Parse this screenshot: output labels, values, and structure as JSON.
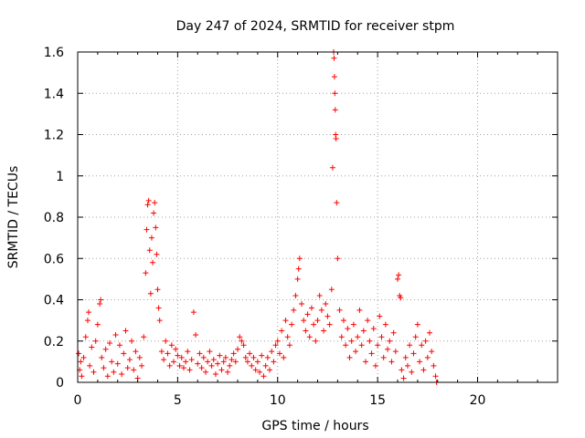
{
  "chart_data": {
    "type": "scatter",
    "title": "Day 247 of 2024, SRMTID for receiver stpm",
    "xlabel": "GPS time / hours",
    "ylabel": "SRMTID / TECUs",
    "xlim": [
      0,
      24
    ],
    "ylim": [
      0,
      1.6
    ],
    "xticks": [
      0,
      5,
      10,
      15,
      20
    ],
    "xtick_labels": [
      "0",
      "5",
      "10",
      "15",
      "20"
    ],
    "yticks": [
      0,
      0.2,
      0.4,
      0.6,
      0.8,
      1,
      1.2,
      1.4,
      1.6
    ],
    "ytick_labels": [
      "0",
      "0.2",
      "0.4",
      "0.6",
      "0.8",
      "1",
      "1.2",
      "1.4",
      "1.6"
    ],
    "grid": true,
    "marker": "+",
    "color": "#ff0000",
    "series": [
      {
        "name": "SRMTID",
        "x": [
          0.05,
          0.1,
          0.15,
          0.2,
          0.3,
          0.4,
          0.5,
          0.55,
          0.6,
          0.7,
          0.8,
          0.9,
          1.0,
          1.1,
          1.15,
          1.2,
          1.3,
          1.4,
          1.5,
          1.6,
          1.7,
          1.8,
          1.9,
          2.0,
          2.1,
          2.2,
          2.3,
          2.4,
          2.5,
          2.6,
          2.7,
          2.8,
          2.9,
          3.0,
          3.1,
          3.2,
          3.3,
          3.4,
          3.45,
          3.5,
          3.55,
          3.6,
          3.65,
          3.7,
          3.75,
          3.8,
          3.85,
          3.9,
          3.95,
          4.0,
          4.05,
          4.1,
          4.2,
          4.3,
          4.4,
          4.5,
          4.6,
          4.7,
          4.8,
          4.9,
          5.0,
          5.1,
          5.2,
          5.3,
          5.4,
          5.5,
          5.6,
          5.7,
          5.8,
          5.9,
          6.0,
          6.1,
          6.2,
          6.3,
          6.4,
          6.5,
          6.6,
          6.7,
          6.8,
          6.9,
          7.0,
          7.1,
          7.2,
          7.3,
          7.4,
          7.5,
          7.6,
          7.7,
          7.8,
          7.9,
          8.0,
          8.1,
          8.2,
          8.3,
          8.4,
          8.5,
          8.6,
          8.7,
          8.8,
          8.9,
          9.0,
          9.1,
          9.2,
          9.3,
          9.4,
          9.5,
          9.6,
          9.7,
          9.8,
          9.9,
          10.0,
          10.1,
          10.2,
          10.3,
          10.4,
          10.5,
          10.6,
          10.7,
          10.8,
          10.9,
          11.0,
          11.05,
          11.1,
          11.2,
          11.3,
          11.4,
          11.5,
          11.6,
          11.7,
          11.8,
          11.9,
          12.0,
          12.1,
          12.2,
          12.3,
          12.4,
          12.5,
          12.6,
          12.7,
          12.75,
          12.8,
          12.82,
          12.84,
          12.86,
          12.88,
          12.9,
          12.92,
          12.95,
          13.0,
          13.1,
          13.2,
          13.3,
          13.4,
          13.5,
          13.6,
          13.7,
          13.8,
          13.9,
          14.0,
          14.1,
          14.2,
          14.3,
          14.4,
          14.5,
          14.6,
          14.7,
          14.8,
          14.9,
          15.0,
          15.1,
          15.2,
          15.3,
          15.4,
          15.5,
          15.6,
          15.7,
          15.8,
          15.9,
          16.0,
          16.05,
          16.1,
          16.15,
          16.2,
          16.3,
          16.4,
          16.5,
          16.6,
          16.7,
          16.8,
          16.9,
          17.0,
          17.1,
          17.2,
          17.3,
          17.4,
          17.5,
          17.6,
          17.7,
          17.8,
          17.9,
          17.95
        ],
        "y": [
          0.14,
          0.06,
          0.1,
          0.03,
          0.12,
          0.22,
          0.3,
          0.34,
          0.08,
          0.17,
          0.05,
          0.2,
          0.28,
          0.38,
          0.4,
          0.12,
          0.07,
          0.16,
          0.03,
          0.19,
          0.1,
          0.05,
          0.23,
          0.09,
          0.18,
          0.04,
          0.14,
          0.25,
          0.07,
          0.11,
          0.2,
          0.06,
          0.15,
          0.02,
          0.12,
          0.08,
          0.22,
          0.53,
          0.74,
          0.86,
          0.88,
          0.64,
          0.43,
          0.7,
          0.58,
          0.82,
          0.87,
          0.75,
          0.62,
          0.45,
          0.36,
          0.3,
          0.15,
          0.11,
          0.2,
          0.14,
          0.08,
          0.18,
          0.1,
          0.16,
          0.13,
          0.08,
          0.12,
          0.07,
          0.1,
          0.15,
          0.06,
          0.11,
          0.34,
          0.23,
          0.09,
          0.14,
          0.07,
          0.12,
          0.05,
          0.1,
          0.15,
          0.08,
          0.11,
          0.04,
          0.09,
          0.13,
          0.06,
          0.1,
          0.12,
          0.05,
          0.08,
          0.11,
          0.14,
          0.1,
          0.16,
          0.22,
          0.2,
          0.18,
          0.12,
          0.1,
          0.14,
          0.08,
          0.12,
          0.06,
          0.1,
          0.05,
          0.13,
          0.03,
          0.08,
          0.12,
          0.06,
          0.15,
          0.1,
          0.18,
          0.2,
          0.14,
          0.25,
          0.12,
          0.3,
          0.22,
          0.18,
          0.28,
          0.35,
          0.42,
          0.5,
          0.55,
          0.6,
          0.38,
          0.3,
          0.25,
          0.33,
          0.22,
          0.36,
          0.28,
          0.2,
          0.3,
          0.42,
          0.35,
          0.25,
          0.38,
          0.32,
          0.28,
          0.45,
          1.04,
          1.6,
          1.57,
          1.48,
          1.4,
          1.32,
          1.2,
          1.18,
          0.87,
          0.6,
          0.35,
          0.22,
          0.3,
          0.18,
          0.26,
          0.12,
          0.2,
          0.28,
          0.15,
          0.22,
          0.35,
          0.18,
          0.25,
          0.1,
          0.3,
          0.2,
          0.14,
          0.26,
          0.08,
          0.18,
          0.32,
          0.22,
          0.12,
          0.28,
          0.16,
          0.2,
          0.1,
          0.24,
          0.15,
          0.5,
          0.52,
          0.42,
          0.41,
          0.06,
          0.02,
          0.12,
          0.08,
          0.18,
          0.05,
          0.14,
          0.22,
          0.28,
          0.1,
          0.18,
          0.06,
          0.2,
          0.12,
          0.24,
          0.15,
          0.08,
          0.03,
          0.0
        ]
      }
    ]
  }
}
